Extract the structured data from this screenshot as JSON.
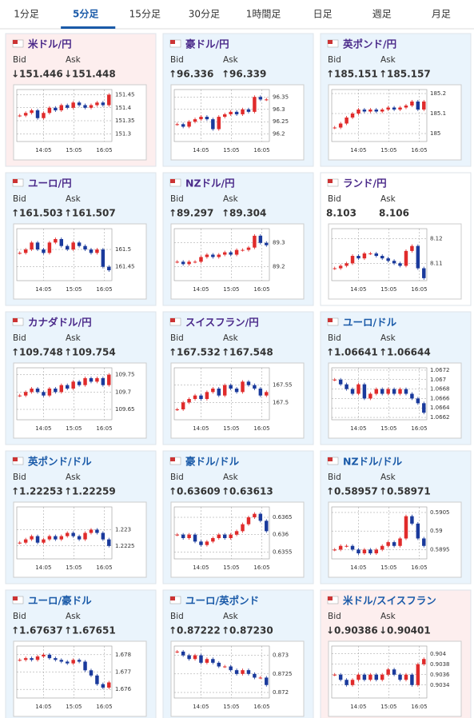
{
  "tabs": [
    "1分足",
    "5分足",
    "15分足",
    "30分足",
    "1時間足",
    "日足",
    "週足",
    "月足"
  ],
  "active_tab": 1,
  "candle_colors": {
    "up": "#e02b2b",
    "down": "#1a3a9c"
  },
  "cards": [
    {
      "title": "米ドル/円",
      "bid_label": "Bid",
      "ask_label": "Ask",
      "bid": "↓151.446",
      "ask": "↓151.448",
      "bg": "#fdeeee",
      "title_color": "#4b2a8a",
      "chart": {
        "type": "candlestick",
        "xlabels": [
          "14:05",
          "15:05",
          "16:05"
        ],
        "ylim": [
          151.27,
          151.47
        ],
        "yticks": [
          151.3,
          151.35,
          151.4,
          151.45
        ],
        "values": [
          151.37,
          151.38,
          151.39,
          151.36,
          151.38,
          151.4,
          151.39,
          151.41,
          151.4,
          151.42,
          151.41,
          151.4,
          151.41,
          151.42,
          151.41,
          151.45
        ]
      }
    },
    {
      "title": "豪ドル/円",
      "bid_label": "Bid",
      "ask_label": "Ask",
      "bid": "↑96.336",
      "ask": "↑96.339",
      "bg": "#eaf4fc",
      "title_color": "#4b2a8a",
      "chart": {
        "type": "candlestick",
        "xlabels": [
          "14:05",
          "15:05",
          "16:05"
        ],
        "ylim": [
          96.17,
          96.38
        ],
        "yticks": [
          96.2,
          96.25,
          96.3,
          96.35
        ],
        "values": [
          96.24,
          96.23,
          96.25,
          96.26,
          96.27,
          96.26,
          96.22,
          96.27,
          96.28,
          96.29,
          96.28,
          96.3,
          96.29,
          96.35,
          96.34,
          96.34
        ]
      }
    },
    {
      "title": "英ポンド/円",
      "bid_label": "Bid",
      "ask_label": "Ask",
      "bid": "↑185.151",
      "ask": "↑185.157",
      "bg": "#eaf4fc",
      "title_color": "#4b2a8a",
      "chart": {
        "type": "candlestick",
        "xlabels": [
          "14:05",
          "15:05",
          "16:05"
        ],
        "ylim": [
          184.96,
          185.22
        ],
        "yticks": [
          185,
          185.1,
          185.2
        ],
        "values": [
          185.03,
          185.05,
          185.08,
          185.1,
          185.12,
          185.11,
          185.12,
          185.11,
          185.12,
          185.13,
          185.12,
          185.13,
          185.14,
          185.16,
          185.12,
          185.16
        ]
      }
    },
    {
      "title": "ユーロ/円",
      "bid_label": "Bid",
      "ask_label": "Ask",
      "bid": "↑161.503",
      "ask": "↑161.507",
      "bg": "#eaf4fc",
      "title_color": "#4b2a8a",
      "chart": {
        "type": "candlestick",
        "xlabels": [
          "14:05",
          "15:05",
          "16:05"
        ],
        "ylim": [
          161.41,
          161.56
        ],
        "yticks": [
          161.45,
          161.5
        ],
        "values": [
          161.49,
          161.5,
          161.52,
          161.5,
          161.49,
          161.52,
          161.53,
          161.51,
          161.5,
          161.52,
          161.51,
          161.5,
          161.49,
          161.5,
          161.45,
          161.44
        ]
      }
    },
    {
      "title": "NZドル/円",
      "bid_label": "Bid",
      "ask_label": "Ask",
      "bid": "↑89.297",
      "ask": "↑89.304",
      "bg": "#eaf4fc",
      "title_color": "#4b2a8a",
      "chart": {
        "type": "candlestick",
        "xlabels": [
          "14:05",
          "15:05",
          "16:05"
        ],
        "ylim": [
          89.14,
          89.36
        ],
        "yticks": [
          89.2,
          89.3
        ],
        "values": [
          89.22,
          89.21,
          89.22,
          89.22,
          89.24,
          89.25,
          89.24,
          89.25,
          89.26,
          89.25,
          89.27,
          89.27,
          89.28,
          89.33,
          89.3,
          89.29
        ]
      }
    },
    {
      "title": "ランド/円",
      "bid_label": "Bid",
      "ask_label": "Ask",
      "bid": "8.103",
      "ask": "8.106",
      "bg": "#ffffff",
      "title_color": "#4b2a8a",
      "chart": {
        "type": "candlestick",
        "xlabels": [
          "14:05",
          "15:05",
          "16:05"
        ],
        "ylim": [
          8.103,
          8.124
        ],
        "yticks": [
          8.11,
          8.12
        ],
        "values": [
          8.108,
          8.109,
          8.11,
          8.113,
          8.112,
          8.114,
          8.114,
          8.113,
          8.112,
          8.111,
          8.11,
          8.109,
          8.115,
          8.117,
          8.108,
          8.104
        ]
      }
    },
    {
      "title": "カナダドル/円",
      "bid_label": "Bid",
      "ask_label": "Ask",
      "bid": "↑109.748",
      "ask": "↑109.754",
      "bg": "#eaf4fc",
      "title_color": "#4b2a8a",
      "chart": {
        "type": "candlestick",
        "xlabels": [
          "14:05",
          "15:05",
          "16:05"
        ],
        "ylim": [
          109.62,
          109.77
        ],
        "yticks": [
          109.65,
          109.7,
          109.75
        ],
        "values": [
          109.69,
          109.7,
          109.71,
          109.7,
          109.69,
          109.71,
          109.7,
          109.72,
          109.71,
          109.73,
          109.72,
          109.74,
          109.73,
          109.74,
          109.72,
          109.75
        ]
      }
    },
    {
      "title": "スイスフラン/円",
      "bid_label": "Bid",
      "ask_label": "Ask",
      "bid": "↑167.532",
      "ask": "↑167.548",
      "bg": "#eaf4fc",
      "title_color": "#4b2a8a",
      "chart": {
        "type": "candlestick",
        "xlabels": [
          "14:05",
          "15:05",
          "16:05"
        ],
        "ylim": [
          167.45,
          167.6
        ],
        "yticks": [
          167.5,
          167.55
        ],
        "values": [
          167.48,
          167.5,
          167.51,
          167.52,
          167.51,
          167.53,
          167.54,
          167.52,
          167.55,
          167.54,
          167.53,
          167.56,
          167.55,
          167.54,
          167.52,
          167.53
        ]
      }
    },
    {
      "title": "ユーロ/ドル",
      "bid_label": "Bid",
      "ask_label": "Ask",
      "bid": "↑1.06641",
      "ask": "↑1.06644",
      "bg": "#eaf4fc",
      "title_color": "#1a5aa8",
      "chart": {
        "type": "candlestick",
        "xlabels": [
          "14:05",
          "15:05",
          "16:05"
        ],
        "ylim": [
          1.06615,
          1.06725
        ],
        "yticks": [
          1.0662,
          1.0664,
          1.0666,
          1.0668,
          1.067,
          1.0672
        ],
        "values": [
          1.067,
          1.0669,
          1.0668,
          1.0667,
          1.0669,
          1.0666,
          1.0667,
          1.0668,
          1.0667,
          1.0668,
          1.0667,
          1.0668,
          1.0667,
          1.0666,
          1.0665,
          1.0663
        ]
      }
    },
    {
      "title": "英ポンド/ドル",
      "bid_label": "Bid",
      "ask_label": "Ask",
      "bid": "↑1.22253",
      "ask": "↑1.22259",
      "bg": "#eaf4fc",
      "title_color": "#1a5aa8",
      "chart": {
        "type": "candlestick",
        "xlabels": [
          "14:05",
          "15:05",
          "16:05"
        ],
        "ylim": [
          1.2221,
          1.2237
        ],
        "yticks": [
          1.2225,
          1.223
        ],
        "values": [
          1.2226,
          1.2227,
          1.2228,
          1.2226,
          1.2227,
          1.2228,
          1.2227,
          1.2228,
          1.2229,
          1.2228,
          1.2227,
          1.2229,
          1.223,
          1.2229,
          1.2227,
          1.2225
        ]
      }
    },
    {
      "title": "豪ドル/ドル",
      "bid_label": "Bid",
      "ask_label": "Ask",
      "bid": "↑0.63609",
      "ask": "↑0.63613",
      "bg": "#eaf4fc",
      "title_color": "#1a5aa8",
      "chart": {
        "type": "candlestick",
        "xlabels": [
          "14:05",
          "15:05",
          "16:05"
        ],
        "ylim": [
          0.6353,
          0.6368
        ],
        "yticks": [
          0.6355,
          0.636,
          0.6365
        ],
        "values": [
          0.636,
          0.6359,
          0.636,
          0.6358,
          0.6357,
          0.6358,
          0.6359,
          0.636,
          0.6359,
          0.636,
          0.6361,
          0.6363,
          0.6365,
          0.6366,
          0.6364,
          0.6361
        ]
      }
    },
    {
      "title": "NZドル/ドル",
      "bid_label": "Bid",
      "ask_label": "Ask",
      "bid": "↑0.58957",
      "ask": "↑0.58971",
      "bg": "#eaf4fc",
      "title_color": "#1a5aa8",
      "chart": {
        "type": "candlestick",
        "xlabels": [
          "14:05",
          "15:05",
          "16:05"
        ],
        "ylim": [
          0.58925,
          0.59065
        ],
        "yticks": [
          0.5895,
          0.59,
          0.5905
        ],
        "values": [
          0.5895,
          0.5896,
          0.5896,
          0.5895,
          0.5894,
          0.5895,
          0.5894,
          0.5895,
          0.5896,
          0.5897,
          0.5896,
          0.5898,
          0.5904,
          0.5902,
          0.5898,
          0.5896
        ]
      }
    },
    {
      "title": "ユーロ/豪ドル",
      "bid_label": "Bid",
      "ask_label": "Ask",
      "bid": "↑1.67637",
      "ask": "↑1.67651",
      "bg": "#eaf4fc",
      "title_color": "#1a5aa8",
      "chart": {
        "type": "candlestick",
        "xlabels": [
          "14:05",
          "15:05",
          "16:05"
        ],
        "ylim": [
          1.6755,
          1.6785
        ],
        "yticks": [
          1.676,
          1.677,
          1.678
        ],
        "values": [
          1.6777,
          1.6778,
          1.6777,
          1.6779,
          1.678,
          1.6778,
          1.6777,
          1.6776,
          1.6775,
          1.6777,
          1.6776,
          1.6771,
          1.6768,
          1.6763,
          1.6761,
          1.6764
        ]
      }
    },
    {
      "title": "ユーロ/英ポンド",
      "bid_label": "Bid",
      "ask_label": "Ask",
      "bid": "↑0.87222",
      "ask": "↑0.87230",
      "bg": "#eaf4fc",
      "title_color": "#1a5aa8",
      "chart": {
        "type": "candlestick",
        "xlabels": [
          "14:05",
          "15:05",
          "16:05"
        ],
        "ylim": [
          0.87185,
          0.87325
        ],
        "yticks": [
          0.872,
          0.8725,
          0.873
        ],
        "values": [
          0.8731,
          0.873,
          0.8729,
          0.873,
          0.8728,
          0.8729,
          0.8728,
          0.8727,
          0.8727,
          0.8726,
          0.8725,
          0.8726,
          0.8725,
          0.8724,
          0.8724,
          0.8722
        ]
      }
    },
    {
      "title": "米ドル/スイスフラン",
      "bid_label": "Bid",
      "ask_label": "Ask",
      "bid": "↓0.90386",
      "ask": "↓0.90401",
      "bg": "#fdeeee",
      "title_color": "#1a5aa8",
      "chart": {
        "type": "candlestick",
        "xlabels": [
          "14:05",
          "15:05",
          "16:05"
        ],
        "ylim": [
          0.90315,
          0.90415
        ],
        "yticks": [
          0.9034,
          0.9036,
          0.9038,
          0.904
        ],
        "values": [
          0.9036,
          0.9035,
          0.9034,
          0.9035,
          0.9036,
          0.9035,
          0.9036,
          0.9035,
          0.9036,
          0.9037,
          0.9036,
          0.9035,
          0.9036,
          0.9034,
          0.9038,
          0.9039
        ]
      }
    }
  ]
}
